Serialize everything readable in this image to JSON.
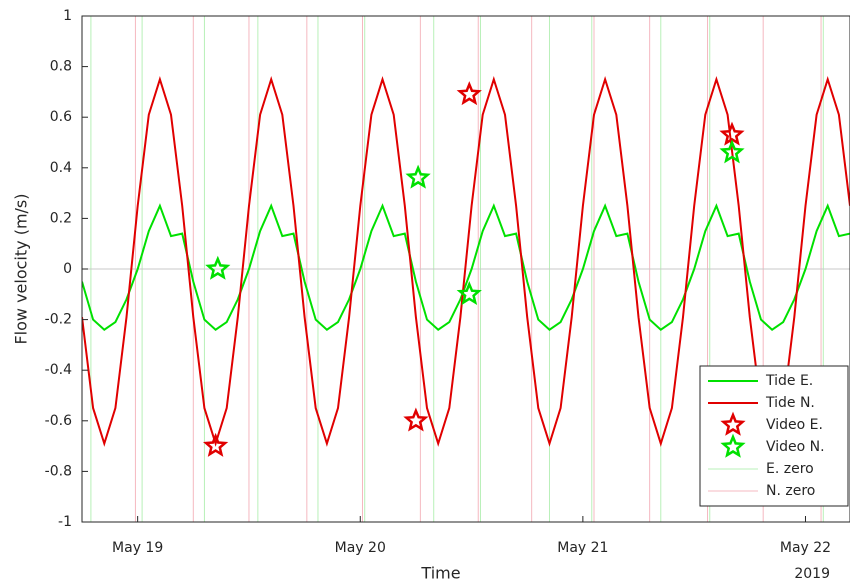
{
  "chart_data": {
    "type": "line",
    "xlabel": "Time",
    "xlabel_secondary": "2019",
    "ylabel": "Flow velocity (m/s)",
    "x": [
      18.75,
      18.8,
      18.85,
      18.9,
      18.95,
      19,
      19.05,
      19.1,
      19.15,
      19.2,
      19.25,
      19.3,
      19.35,
      19.4,
      19.45,
      19.5,
      19.55,
      19.6,
      19.65,
      19.7,
      19.75,
      19.8,
      19.85,
      19.9,
      19.95,
      20,
      20.05,
      20.1,
      20.15,
      20.2,
      20.25,
      20.3,
      20.35,
      20.4,
      20.45,
      20.5,
      20.55,
      20.6,
      20.65,
      20.7,
      20.75,
      20.8,
      20.85,
      20.9,
      20.95,
      21,
      21.05,
      21.1,
      21.15,
      21.2,
      21.25,
      21.3,
      21.35,
      21.4,
      21.45,
      21.5,
      21.55,
      21.6,
      21.65,
      21.7,
      21.75,
      21.8,
      21.85,
      21.9,
      21.95,
      22,
      22.05,
      22.1,
      22.15,
      22.2
    ],
    "xlim": [
      18.75,
      22.2
    ],
    "xticks": [
      {
        "value": 19,
        "label": "May 19"
      },
      {
        "value": 20,
        "label": "May 20"
      },
      {
        "value": 21,
        "label": "May 21"
      },
      {
        "value": 22,
        "label": "May 22"
      }
    ],
    "ylim": [
      -1,
      1
    ],
    "yticks": [
      -1,
      -0.8,
      -0.6,
      -0.4,
      -0.2,
      0,
      0.2,
      0.4,
      0.6,
      0.8,
      1
    ],
    "legend": "lower right",
    "series": [
      {
        "name": "Tide E.",
        "type": "line",
        "color": "#00e000",
        "values": [
          -0.05,
          -0.2,
          -0.24,
          -0.21,
          -0.12,
          0,
          0.15,
          0.25,
          0.13,
          0.14,
          -0.05,
          -0.2,
          -0.24,
          -0.21,
          -0.12,
          0,
          0.15,
          0.25,
          0.13,
          0.14,
          -0.05,
          -0.2,
          -0.24,
          -0.21,
          -0.12,
          0,
          0.15,
          0.25,
          0.13,
          0.14,
          -0.05,
          -0.2,
          -0.24,
          -0.21,
          -0.12,
          0,
          0.15,
          0.25,
          0.13,
          0.14,
          -0.05,
          -0.2,
          -0.24,
          -0.21,
          -0.12,
          0,
          0.15,
          0.25,
          0.13,
          0.14,
          -0.05,
          -0.2,
          -0.24,
          -0.21,
          -0.12,
          0,
          0.15,
          0.25,
          0.13,
          0.14,
          -0.05,
          -0.2,
          -0.24,
          -0.21,
          -0.12,
          0,
          0.15,
          0.25,
          0.13,
          0.14
        ]
      },
      {
        "name": "Tide N.",
        "type": "line",
        "color": "#e00000",
        "values": [
          -0.19,
          -0.55,
          -0.69,
          -0.55,
          -0.19,
          0.25,
          0.61,
          0.75,
          0.61,
          0.25,
          -0.19,
          -0.55,
          -0.69,
          -0.55,
          -0.19,
          0.25,
          0.61,
          0.75,
          0.61,
          0.25,
          -0.19,
          -0.55,
          -0.69,
          -0.55,
          -0.19,
          0.25,
          0.61,
          0.75,
          0.61,
          0.25,
          -0.19,
          -0.55,
          -0.69,
          -0.55,
          -0.19,
          0.25,
          0.61,
          0.75,
          0.61,
          0.25,
          -0.19,
          -0.55,
          -0.69,
          -0.55,
          -0.19,
          0.25,
          0.61,
          0.75,
          0.61,
          0.25,
          -0.19,
          -0.55,
          -0.69,
          -0.55,
          -0.19,
          0.25,
          0.61,
          0.75,
          0.61,
          0.25,
          -0.19,
          -0.55,
          -0.69,
          -0.55,
          -0.19,
          0.25,
          0.61,
          0.75,
          0.61,
          0.25
        ]
      },
      {
        "name": "Video E.",
        "type": "scatter",
        "marker": "star",
        "color": "#e00000",
        "x": [
          19.35,
          20.25,
          20.49,
          21.67
        ],
        "values": [
          -0.7,
          -0.6,
          0.69,
          0.53
        ]
      },
      {
        "name": "Video N.",
        "type": "scatter",
        "marker": "star",
        "color": "#00e000",
        "x": [
          19.36,
          20.26,
          20.49,
          21.67
        ],
        "values": [
          0,
          0.36,
          -0.1,
          0.46
        ]
      },
      {
        "name": "E. zero",
        "type": "vline",
        "color": "#b8f0b8",
        "x": [
          18.79,
          19.02,
          19.3,
          19.54,
          19.81,
          20.02,
          20.33,
          20.54,
          20.85,
          21.04,
          21.35,
          21.57,
          22.08
        ]
      },
      {
        "name": "N. zero",
        "type": "vline",
        "color": "#f5b8c0",
        "x": [
          18.99,
          19.25,
          19.5,
          19.76,
          20.01,
          20.27,
          20.53,
          20.77,
          21.05,
          21.3,
          21.56,
          21.81,
          22.07
        ]
      }
    ]
  }
}
